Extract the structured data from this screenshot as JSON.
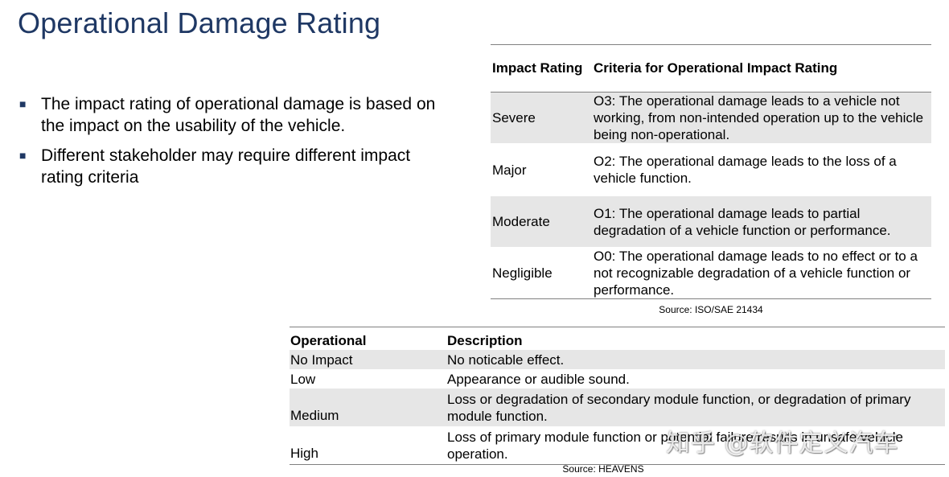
{
  "title": "Operational Damage Rating",
  "bullets": [
    "The impact rating of operational damage is based on the impact on the usability of the vehicle.",
    "Different stakeholder may require different impact rating criteria"
  ],
  "iso_table": {
    "headers": [
      "Impact Rating",
      "Criteria for Operational Impact Rating"
    ],
    "rows": [
      {
        "rating": "Severe",
        "criteria": "O3: The operational damage leads to a vehicle not working, from non-intended operation up to the vehicle being non-operational."
      },
      {
        "rating": "Major",
        "criteria": "O2: The operational damage leads to the loss of a vehicle function."
      },
      {
        "rating": "Moderate",
        "criteria": "O1: The operational damage leads to partial degradation of a vehicle function or performance."
      },
      {
        "rating": "Negligible",
        "criteria": "O0: The operational damage leads to no effect or to a not recognizable degradation of a vehicle function or performance."
      }
    ],
    "source": "Source: ISO/SAE 21434"
  },
  "heavens_table": {
    "headers": [
      "Operational",
      "Description"
    ],
    "rows": [
      {
        "level": "No Impact",
        "description": "No noticable effect."
      },
      {
        "level": "Low",
        "description": "Appearance or audible sound."
      },
      {
        "level": "Medium",
        "description": "Loss or degradation of secondary module function, or degradation of primary module function."
      },
      {
        "level": "High",
        "description": "Loss of primary module function or potential failure results in unsafe vehicle operation."
      }
    ],
    "source": "Source: HEAVENS"
  },
  "watermark": "知乎 @软件定义汽车",
  "colors": {
    "title": "#1f3864",
    "row_shade": "#e6e6e6",
    "rule": "#808080"
  }
}
